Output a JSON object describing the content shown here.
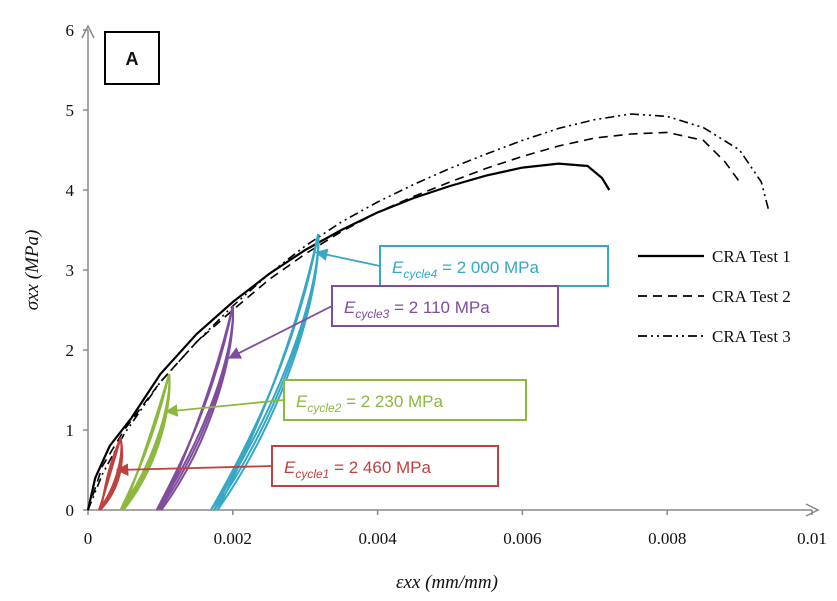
{
  "chart_data": {
    "type": "line",
    "panel_label": "A",
    "xlabel": "εxx (mm/mm)",
    "ylabel": "σxx (MPa)",
    "xlim": [
      0,
      0.01
    ],
    "ylim": [
      0,
      6
    ],
    "x_ticks": [
      "0",
      "0.002",
      "0.004",
      "0.006",
      "0.008",
      "0.01"
    ],
    "y_ticks": [
      "0",
      "1",
      "2",
      "3",
      "4",
      "5",
      "6"
    ],
    "grid": false,
    "legend_position": "right",
    "series": [
      {
        "name": "CRA Test 1",
        "style": "solid",
        "color": "#000000",
        "x": [
          0,
          0.0001,
          0.0003,
          0.0006,
          0.001,
          0.0015,
          0.002,
          0.0025,
          0.003,
          0.0035,
          0.004,
          0.0045,
          0.005,
          0.0055,
          0.006,
          0.0065,
          0.0069,
          0.0071,
          0.0072
        ],
        "y": [
          0,
          0.4,
          0.8,
          1.15,
          1.7,
          2.2,
          2.6,
          2.95,
          3.25,
          3.5,
          3.72,
          3.9,
          4.05,
          4.18,
          4.28,
          4.33,
          4.3,
          4.15,
          4.0
        ]
      },
      {
        "name": "CRA Test 2",
        "style": "dashed",
        "color": "#000000",
        "x": [
          0,
          0.0002,
          0.0005,
          0.001,
          0.0015,
          0.002,
          0.0025,
          0.003,
          0.0035,
          0.004,
          0.0045,
          0.005,
          0.0055,
          0.006,
          0.0065,
          0.007,
          0.0075,
          0.008,
          0.0085,
          0.0088,
          0.009
        ],
        "y": [
          0,
          0.55,
          1.0,
          1.6,
          2.1,
          2.5,
          2.88,
          3.2,
          3.48,
          3.72,
          3.92,
          4.1,
          4.27,
          4.42,
          4.55,
          4.65,
          4.7,
          4.72,
          4.62,
          4.35,
          4.1
        ]
      },
      {
        "name": "CRA Test 3",
        "style": "dash-dot",
        "color": "#000000",
        "x": [
          0,
          0.0002,
          0.0005,
          0.001,
          0.0015,
          0.002,
          0.0025,
          0.003,
          0.0035,
          0.004,
          0.0045,
          0.005,
          0.0055,
          0.006,
          0.0065,
          0.007,
          0.0075,
          0.008,
          0.0085,
          0.009,
          0.0093,
          0.0094
        ],
        "y": [
          0,
          0.45,
          0.95,
          1.6,
          2.1,
          2.55,
          2.95,
          3.3,
          3.6,
          3.85,
          4.07,
          4.27,
          4.45,
          4.62,
          4.77,
          4.88,
          4.95,
          4.92,
          4.78,
          4.5,
          4.1,
          3.75
        ]
      }
    ],
    "loops": [
      {
        "name": "cycle 1",
        "color": "#c0413f",
        "start": 0.00015,
        "peakx": 0.00045,
        "peaky": 0.9
      },
      {
        "name": "cycle 2",
        "color": "#8cb83e",
        "start": 0.00045,
        "peakx": 0.00112,
        "peaky": 1.7
      },
      {
        "name": "cycle 3",
        "color": "#7f4c9e",
        "start": 0.00095,
        "peakx": 0.002,
        "peaky": 2.55
      },
      {
        "name": "cycle 4",
        "color": "#36a7c4",
        "start": 0.0017,
        "peakx": 0.00318,
        "peaky": 3.45
      }
    ],
    "annotations": [
      {
        "label": "E",
        "sub": "cycle4",
        "value": " = 2 000 MPa",
        "color": "#36a7c4",
        "arrow_to": [
          0.00315,
          3.22
        ]
      },
      {
        "label": "E",
        "sub": "cycle3",
        "value": " = 2 110 MPa",
        "color": "#7f4c9e",
        "arrow_to": [
          0.00195,
          1.9
        ]
      },
      {
        "label": "E",
        "sub": "cycle2",
        "value": " = 2 230 MPa",
        "color": "#8cb83e",
        "arrow_to": [
          0.00108,
          1.23
        ]
      },
      {
        "label": "E",
        "sub": "cycle1",
        "value": " = 2 460 MPa",
        "color": "#c0413f",
        "arrow_to": [
          0.0004,
          0.5
        ]
      }
    ]
  }
}
